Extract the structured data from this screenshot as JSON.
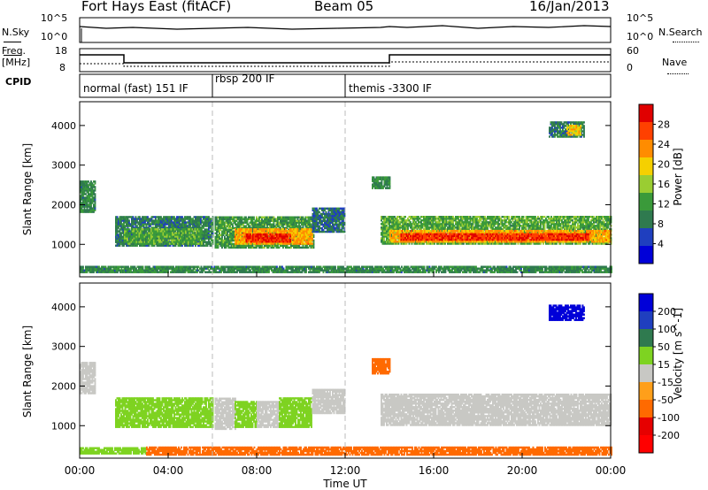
{
  "header": {
    "station": "Fort Hays East (fitACF)",
    "beam": "Beam 05",
    "date": "16/Jan/2013"
  },
  "top_panels": {
    "noise": {
      "left_label": "N.Sky",
      "left_ticks": [
        "10^5",
        "10^0"
      ],
      "right_label": "N.Search",
      "right_ticks": [
        "10^5",
        "10^0"
      ]
    },
    "freq": {
      "left_label": "Freq.",
      "left_unit": "[MHz]",
      "left_ticks": [
        "18",
        "8"
      ],
      "right_label": "Nave",
      "right_ticks": [
        "60",
        "0"
      ]
    },
    "cpid": {
      "label": "CPID",
      "segments": [
        "normal (fast) 151 IF",
        "rbsp 200 IF",
        "themis -3300 IF"
      ]
    }
  },
  "colors": {
    "power": [
      "#0000d8",
      "#1f3fbf",
      "#2f7a4f",
      "#3a9a3a",
      "#9acd32",
      "#f5d000",
      "#ff8c00",
      "#ff4000",
      "#e00000"
    ],
    "velocity": [
      "#0000d8",
      "#1f3fbf",
      "#2f7a4f",
      "#7ed321",
      "#c8c8c4",
      "#ff9f1a",
      "#ff6a00",
      "#e60000",
      "#ff0000"
    ],
    "ground_scatter_gray": "#c8c8c4"
  },
  "chart_data": [
    {
      "type": "heatmap",
      "title": "Power",
      "xlabel": "Time UT",
      "ylabel": "Slant Range [km]",
      "x_ticks": [
        "00:00",
        "04:00",
        "08:00",
        "12:00",
        "16:00",
        "20:00",
        "00:00"
      ],
      "x_range_hours": [
        0,
        24
      ],
      "y_ticks": [
        "1000",
        "2000",
        "3000",
        "4000"
      ],
      "y_range": [
        180,
        4600
      ],
      "colorbar": {
        "label": "Power [dB]",
        "ticks": [
          "4",
          "8",
          "12",
          "16",
          "20",
          "24",
          "28"
        ],
        "range": [
          0,
          32
        ]
      },
      "bands": [
        {
          "t": [
            0.0,
            0.7
          ],
          "r": [
            1800,
            2600
          ],
          "value": 10
        },
        {
          "t": [
            1.6,
            6.0
          ],
          "r": [
            950,
            1700
          ],
          "value": 9
        },
        {
          "t": [
            2.0,
            5.5
          ],
          "r": [
            1000,
            1400
          ],
          "value": 13
        },
        {
          "t": [
            6.1,
            10.6
          ],
          "r": [
            900,
            1700
          ],
          "value": 12
        },
        {
          "t": [
            7.0,
            10.5
          ],
          "r": [
            1000,
            1400
          ],
          "value": 22
        },
        {
          "t": [
            7.5,
            9.5
          ],
          "r": [
            1050,
            1250
          ],
          "value": 28
        },
        {
          "t": [
            10.5,
            12.0
          ],
          "r": [
            1300,
            1900
          ],
          "value": 8
        },
        {
          "t": [
            13.2,
            14.0
          ],
          "r": [
            2400,
            2700
          ],
          "value": 11
        },
        {
          "t": [
            13.6,
            24.0
          ],
          "r": [
            1000,
            1700
          ],
          "value": 13
        },
        {
          "t": [
            14.0,
            24.0
          ],
          "r": [
            1050,
            1350
          ],
          "value": 22
        },
        {
          "t": [
            14.5,
            23.0
          ],
          "r": [
            1100,
            1250
          ],
          "value": 28
        },
        {
          "t": [
            21.2,
            22.8
          ],
          "r": [
            3700,
            4100
          ],
          "value": 9
        },
        {
          "t": [
            22.0,
            22.6
          ],
          "r": [
            3750,
            4000
          ],
          "value": 20
        },
        {
          "t": [
            0.0,
            24.0
          ],
          "r": [
            280,
            420
          ],
          "value": 10
        }
      ]
    },
    {
      "type": "heatmap",
      "title": "Velocity",
      "xlabel": "Time UT",
      "ylabel": "Slant Range [km]",
      "x_ticks": [
        "00:00",
        "04:00",
        "08:00",
        "12:00",
        "16:00",
        "20:00",
        "00:00"
      ],
      "x_range_hours": [
        0,
        24
      ],
      "y_ticks": [
        "1000",
        "2000",
        "3000",
        "4000"
      ],
      "y_range": [
        180,
        4600
      ],
      "colorbar": {
        "label": "Velocity [m s^-1]",
        "ticks": [
          "200",
          "100",
          "50",
          "15",
          "-15",
          "-50",
          "-100",
          "-200"
        ],
        "range": [
          -250,
          250
        ]
      },
      "bands": [
        {
          "t": [
            0.0,
            0.7
          ],
          "r": [
            1800,
            2600
          ],
          "value": 0
        },
        {
          "t": [
            1.6,
            6.0
          ],
          "r": [
            950,
            1700
          ],
          "value": 40
        },
        {
          "t": [
            6.1,
            7.0
          ],
          "r": [
            900,
            1700
          ],
          "value": 0
        },
        {
          "t": [
            7.0,
            8.0
          ],
          "r": [
            950,
            1600
          ],
          "value": 40
        },
        {
          "t": [
            8.0,
            9.0
          ],
          "r": [
            950,
            1600
          ],
          "value": 0
        },
        {
          "t": [
            9.0,
            10.5
          ],
          "r": [
            950,
            1700
          ],
          "value": 40
        },
        {
          "t": [
            10.5,
            12.0
          ],
          "r": [
            1300,
            1900
          ],
          "value": 0
        },
        {
          "t": [
            13.2,
            14.0
          ],
          "r": [
            2300,
            2700
          ],
          "value": -60
        },
        {
          "t": [
            13.6,
            24.0
          ],
          "r": [
            1000,
            1800
          ],
          "value": 0
        },
        {
          "t": [
            21.2,
            22.8
          ],
          "r": [
            3650,
            4050
          ],
          "value": 220
        },
        {
          "t": [
            0.0,
            3.0
          ],
          "r": [
            280,
            420
          ],
          "value": 30
        },
        {
          "t": [
            3.0,
            24.0
          ],
          "r": [
            250,
            450
          ],
          "value": -60
        }
      ]
    }
  ]
}
